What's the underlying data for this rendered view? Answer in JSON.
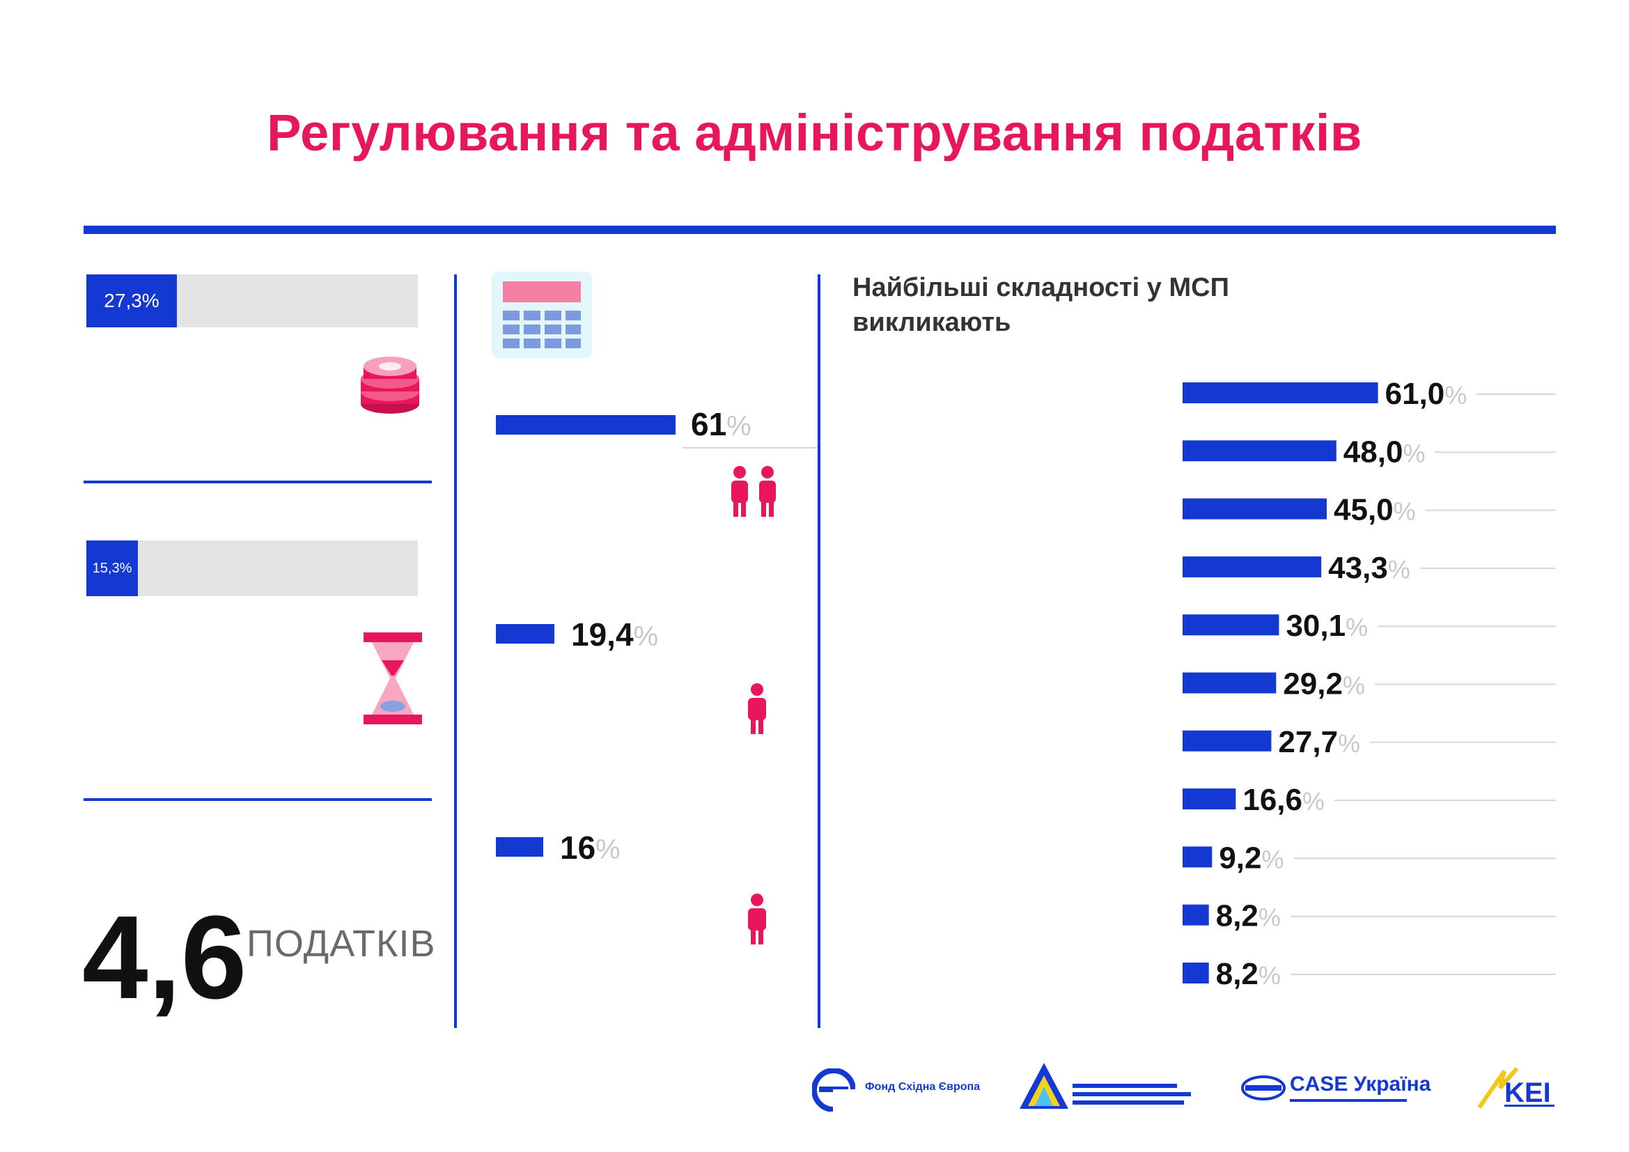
{
  "title": "Регулювання та адміністрування податків",
  "colors": {
    "accent": "#e8175d",
    "primary_blue": "#1439d2",
    "track_gray": "#e4e4e4",
    "text_dark": "#111111",
    "pct_gray": "#c8c8c8"
  },
  "left": {
    "stat1": {
      "value_label": "27,3%",
      "value": 27.3,
      "caption": ""
    },
    "stat2": {
      "value_label": "15,3%",
      "value": 15.3,
      "caption": ""
    },
    "stat3": {
      "caption": "",
      "number": "4,6",
      "unit": "ПОДАТКІВ"
    },
    "icons": {
      "coins": "coins-icon",
      "hourglass": "hourglass-icon"
    }
  },
  "middle": {
    "icons": {
      "calculator": "calculator-icon",
      "people_two": "two-people-icon",
      "person_one": "person-icon",
      "person_one_b": "person-icon"
    },
    "items": [
      {
        "value": 61,
        "value_label": "61",
        "caption": ""
      },
      {
        "value": 19.4,
        "value_label": "19,4",
        "caption": ""
      },
      {
        "value": 16,
        "value_label": "16",
        "caption": ""
      }
    ],
    "pct_symbol": "%"
  },
  "chart_data": {
    "type": "bar",
    "orientation": "horizontal",
    "title": "Найбільші складності у МСП викликають",
    "categories": [
      "",
      "",
      "",
      "",
      "",
      "",
      "",
      "",
      "",
      "",
      ""
    ],
    "values": [
      61.0,
      48.0,
      45.0,
      43.3,
      30.1,
      29.2,
      27.7,
      16.6,
      9.2,
      8.2,
      8.2
    ],
    "value_labels": [
      "61,0",
      "48,0",
      "45,0",
      "43,3",
      "30,1",
      "29,2",
      "27,7",
      "16,6",
      "9,2",
      "8,2",
      "8,2"
    ],
    "pct_symbol": "%",
    "xlim": [
      0,
      100
    ],
    "grid": false,
    "legend": "none"
  },
  "footer": {
    "note1": "",
    "note2": "",
    "logos": [
      {
        "name": "fond-east-europe",
        "icon": "e-logo-icon",
        "text": "Фонд Східна Європа"
      },
      {
        "name": "ier",
        "icon": "triangle-logo-icon",
        "text": ""
      },
      {
        "name": "case-ukraine",
        "icon": "case-logo-icon",
        "text": "CASE Україна",
        "subtext": ""
      },
      {
        "name": "kei",
        "icon": "kei-logo-icon",
        "text": "KEI"
      }
    ]
  }
}
